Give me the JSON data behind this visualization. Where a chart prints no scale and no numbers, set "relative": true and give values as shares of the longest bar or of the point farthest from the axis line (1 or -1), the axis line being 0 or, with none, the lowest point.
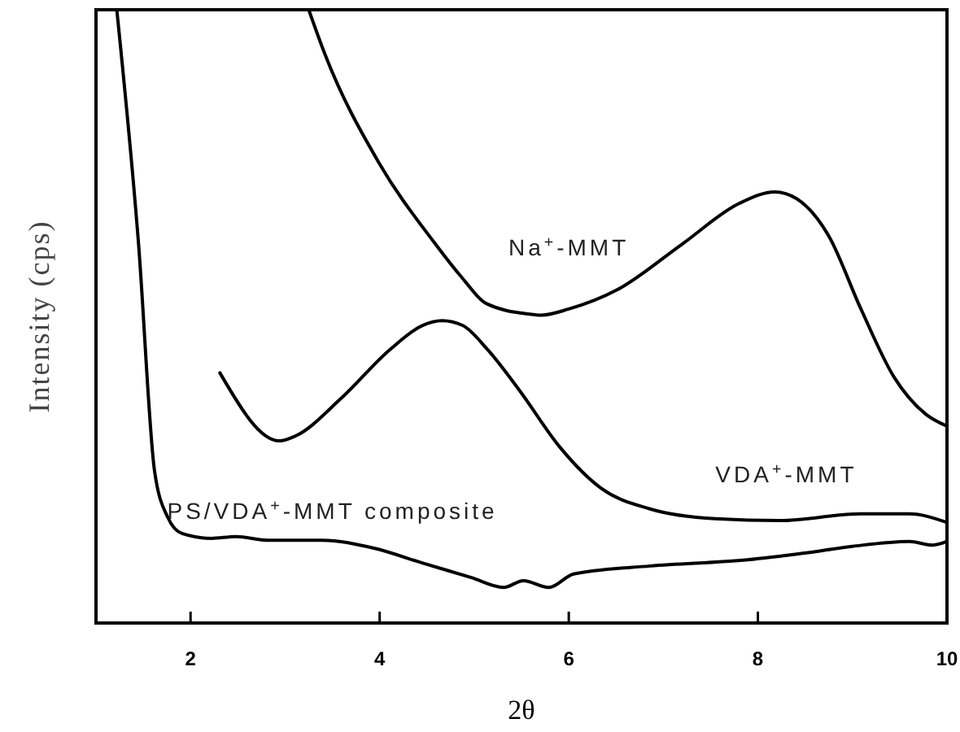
{
  "chart_data": {
    "type": "line",
    "xlabel": "2θ",
    "ylabel": "Intensity (cps)",
    "relative": true,
    "xlim": [
      1,
      10
    ],
    "xticks": [
      2,
      4,
      6,
      8,
      10
    ],
    "grid": false,
    "marker": "none",
    "line_style": "solid",
    "series": [
      {
        "name": "Na$^{+}$-MMT",
        "color": "#000000",
        "x": [
          3.25,
          3.42,
          3.99,
          4.57,
          4.85,
          5.14,
          5.57,
          5.71,
          6.0,
          6.52,
          7.2,
          7.8,
          8.18,
          8.41,
          8.75,
          9.09,
          9.44,
          9.78,
          10
        ],
        "values": [
          1,
          0.928,
          0.751,
          0.622,
          0.567,
          0.52,
          0.504,
          0.502,
          0.512,
          0.544,
          0.618,
          0.684,
          0.703,
          0.692,
          0.631,
          0.512,
          0.401,
          0.34,
          0.321
        ]
      },
      {
        "name": "VDA$^{+}$-MMT",
        "color": "#000000",
        "x": [
          2.31,
          2.94,
          3.11,
          3.59,
          4.11,
          4.45,
          4.66,
          4.88,
          5.14,
          5.48,
          5.91,
          6.34,
          6.86,
          7.55,
          8.23,
          9.09,
          9.6,
          10
        ],
        "values": [
          0.408,
          0.297,
          0.305,
          0.366,
          0.446,
          0.485,
          0.493,
          0.485,
          0.446,
          0.379,
          0.286,
          0.22,
          0.186,
          0.17,
          0.167,
          0.178,
          0.178,
          0.164
        ]
      },
      {
        "name": "PS/VDA$^{+}$-MMT composite",
        "color": "#000000",
        "x": [
          1.22,
          1.45,
          1.62,
          1.76,
          1.91,
          2.22,
          2.48,
          2.82,
          3.39,
          3.94,
          4.45,
          4.97,
          5.31,
          5.52,
          5.79,
          6.05,
          6.86,
          7.89,
          8.49,
          9.0,
          9.6,
          9.85,
          10
        ],
        "values": [
          1,
          0.618,
          0.247,
          0.172,
          0.146,
          0.138,
          0.141,
          0.135,
          0.135,
          0.122,
          0.098,
          0.074,
          0.058,
          0.069,
          0.058,
          0.08,
          0.093,
          0.103,
          0.114,
          0.125,
          0.133,
          0.127,
          0.133
        ]
      }
    ]
  }
}
